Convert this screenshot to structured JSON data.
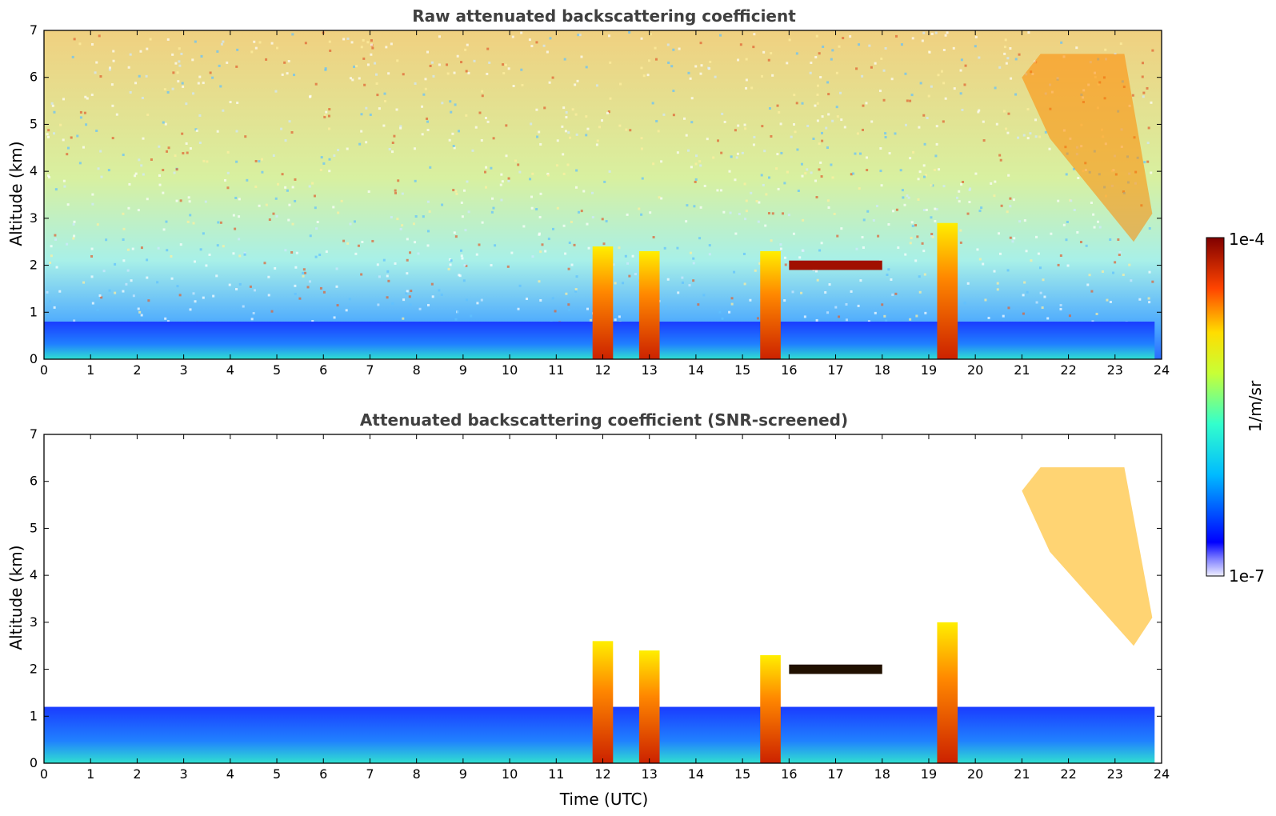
{
  "chart_data": [
    {
      "type": "heatmap",
      "title": "Raw attenuated backscattering coefficient",
      "xlabel": "",
      "ylabel": "Altitude (km)",
      "xlim": [
        0,
        24
      ],
      "ylim": [
        0,
        7
      ],
      "xticks": [
        "0",
        "1",
        "2",
        "3",
        "4",
        "5",
        "6",
        "7",
        "8",
        "9",
        "10",
        "11",
        "12",
        "13",
        "14",
        "15",
        "16",
        "17",
        "18",
        "19",
        "20",
        "21",
        "22",
        "23",
        "24"
      ],
      "yticks": [
        "0",
        "1",
        "2",
        "3",
        "4",
        "5",
        "6",
        "7"
      ],
      "log_color_scale": true,
      "features": [
        {
          "kind": "boundary_layer",
          "x": [
            0,
            24
          ],
          "top_km": 0.8
        },
        {
          "kind": "precip_column",
          "x": 12.0,
          "top_km": 2.4
        },
        {
          "kind": "precip_column",
          "x": 13.0,
          "top_km": 2.3
        },
        {
          "kind": "precip_column",
          "x": 15.6,
          "top_km": 2.3
        },
        {
          "kind": "precip_column",
          "x": 19.4,
          "top_km": 2.9
        },
        {
          "kind": "cloud_layer",
          "x": [
            16,
            18
          ],
          "alt_km": 2.0
        },
        {
          "kind": "cirrus",
          "x": [
            21,
            23.8
          ],
          "alt_km": [
            2.5,
            6.5
          ]
        }
      ]
    },
    {
      "type": "heatmap",
      "title": "Attenuated backscattering coefficient (SNR-screened)",
      "xlabel": "Time (UTC)",
      "ylabel": "Altitude (km)",
      "xlim": [
        0,
        24
      ],
      "ylim": [
        0,
        7
      ],
      "xticks": [
        "0",
        "1",
        "2",
        "3",
        "4",
        "5",
        "6",
        "7",
        "8",
        "9",
        "10",
        "11",
        "12",
        "13",
        "14",
        "15",
        "16",
        "17",
        "18",
        "19",
        "20",
        "21",
        "22",
        "23",
        "24"
      ],
      "yticks": [
        "0",
        "1",
        "2",
        "3",
        "4",
        "5",
        "6",
        "7"
      ],
      "log_color_scale": true,
      "features": [
        {
          "kind": "boundary_layer",
          "x": [
            0,
            24
          ],
          "top_km": 1.2
        },
        {
          "kind": "precip_column",
          "x": 12.0,
          "top_km": 2.6
        },
        {
          "kind": "precip_column",
          "x": 13.0,
          "top_km": 2.4
        },
        {
          "kind": "precip_column",
          "x": 15.6,
          "top_km": 2.3
        },
        {
          "kind": "precip_column",
          "x": 19.4,
          "top_km": 3.0
        },
        {
          "kind": "cloud_layer",
          "x": [
            16,
            18
          ],
          "alt_km": 2.0
        },
        {
          "kind": "cirrus",
          "x": [
            21,
            23.8
          ],
          "alt_km": [
            2.5,
            6.3
          ]
        }
      ]
    }
  ],
  "colorbar": {
    "label": "1/m/sr",
    "max_label": "1e-4",
    "min_label": "1e-7",
    "colormap": "jet"
  }
}
